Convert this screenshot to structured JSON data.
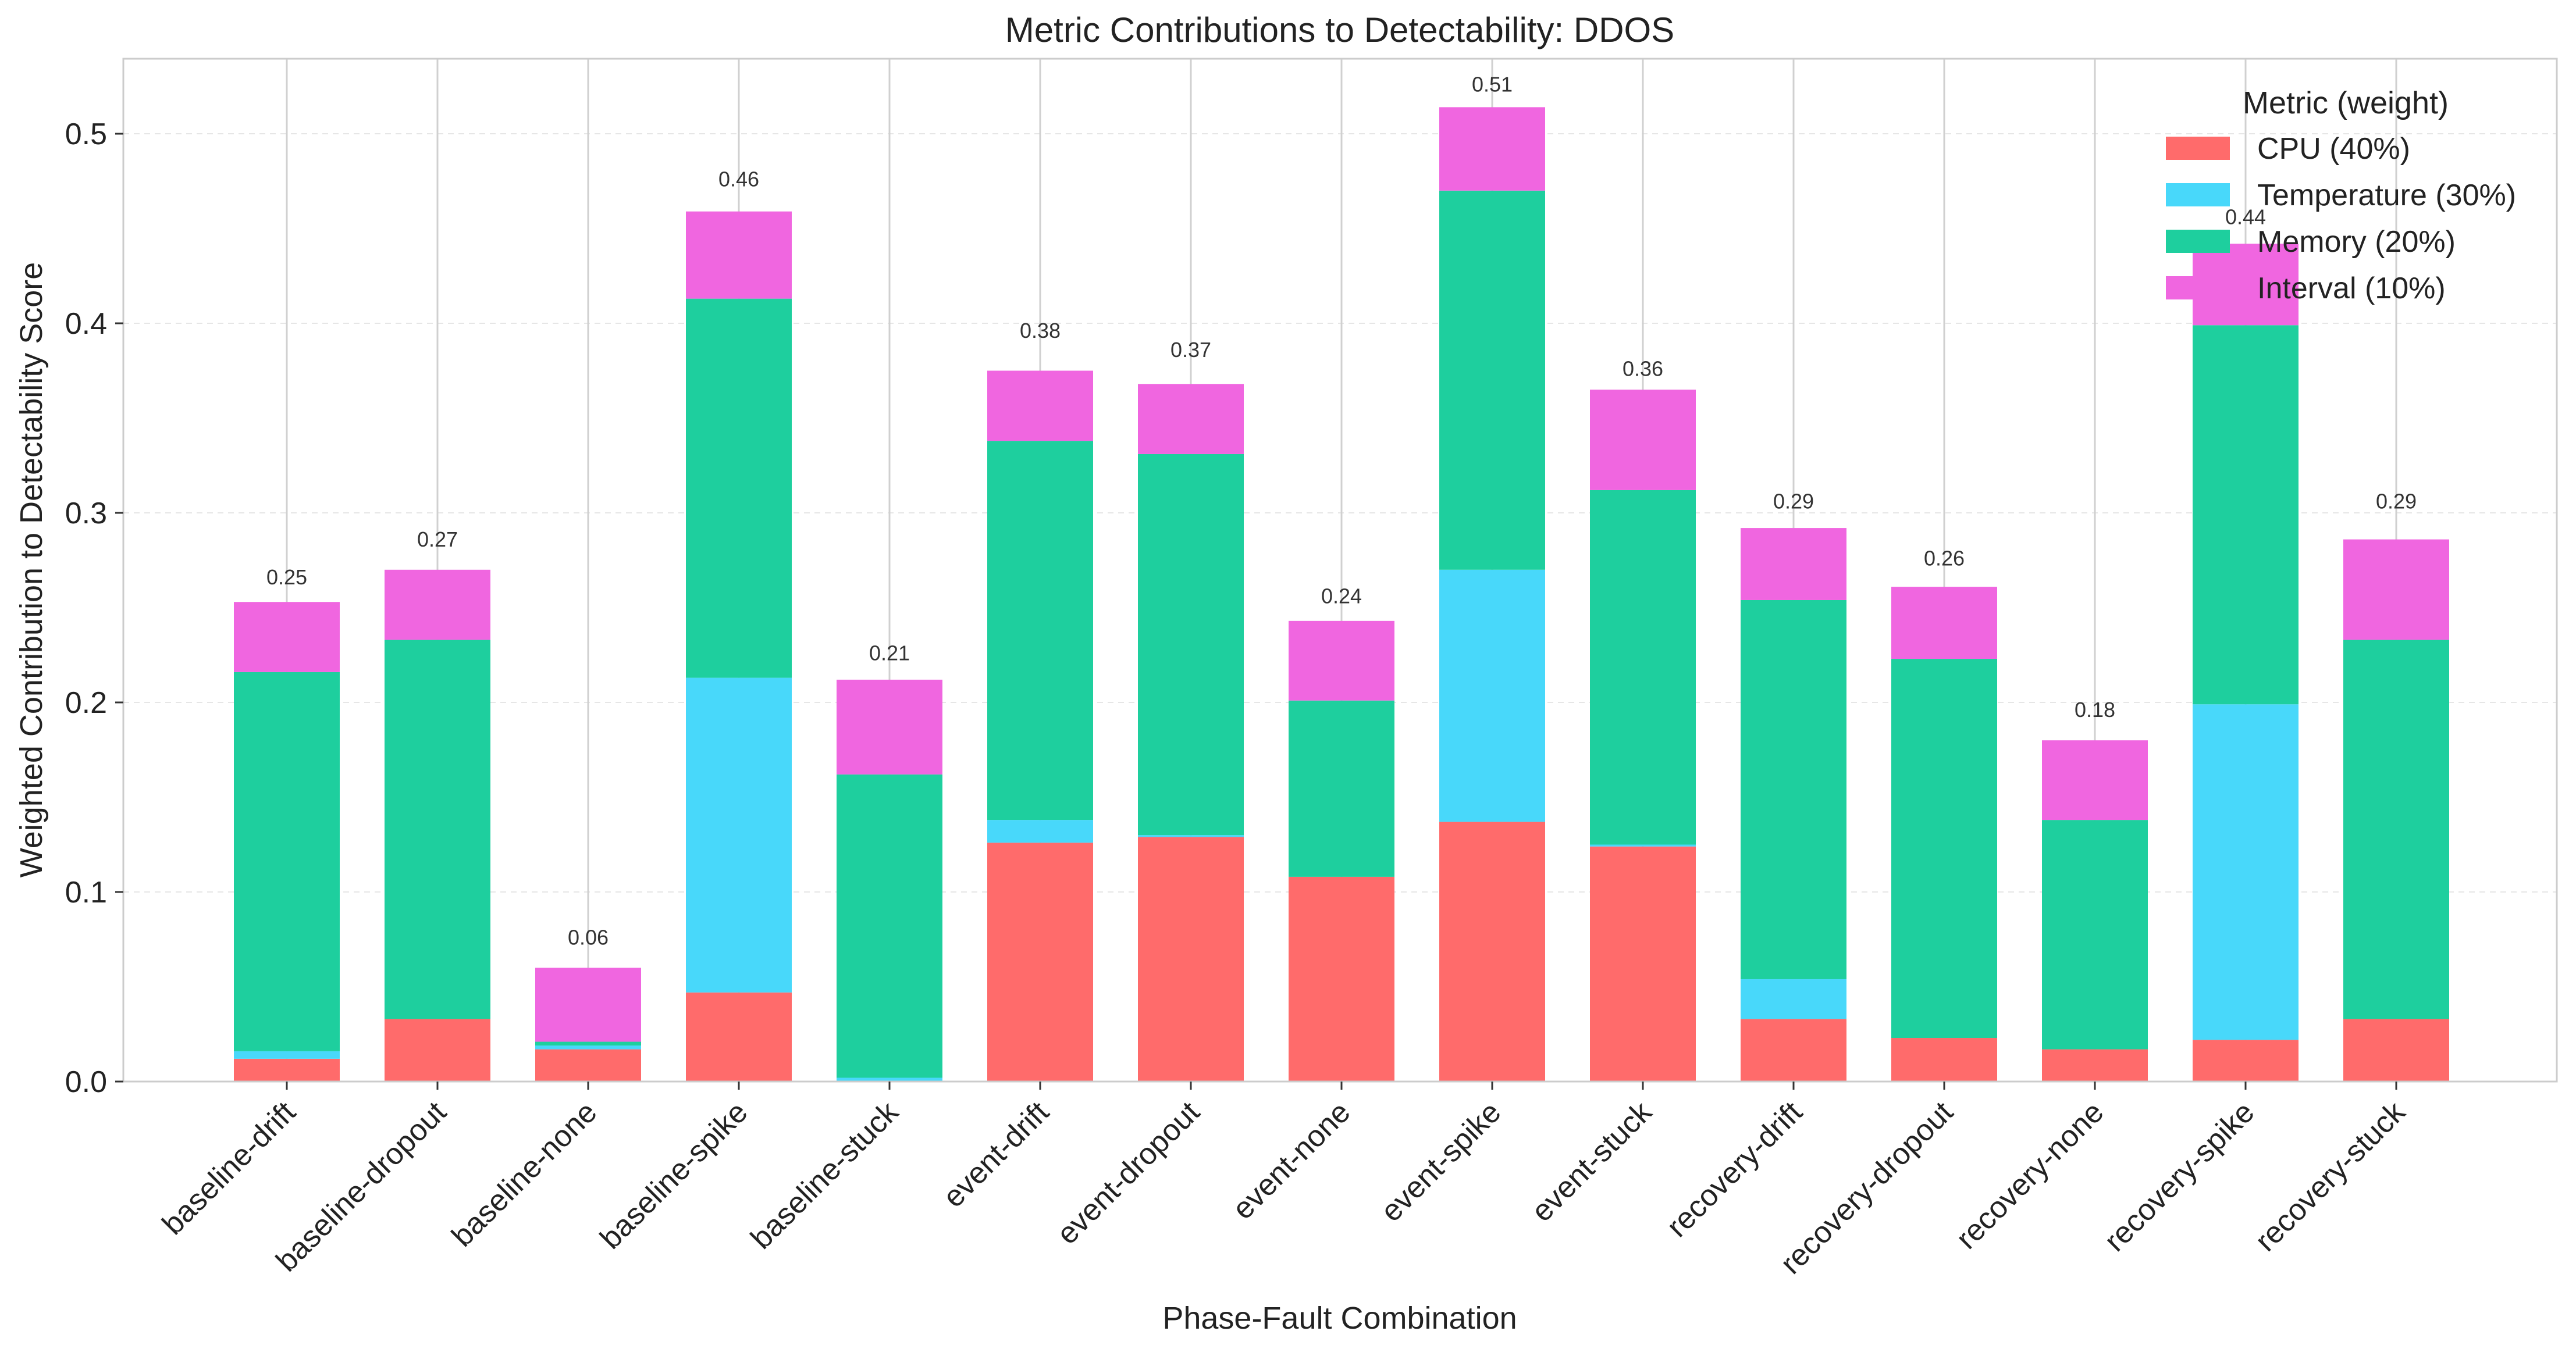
{
  "chart_data": {
    "type": "bar",
    "stacked": true,
    "title": "Metric Contributions to Detectability: DDOS",
    "xlabel": "Phase-Fault Combination",
    "ylabel": "Weighted Contribution to Detectability Score",
    "ylim": [
      0,
      0.54
    ],
    "yticks": [
      0.0,
      0.1,
      0.2,
      0.3,
      0.4,
      0.5
    ],
    "ytick_labels": [
      "0.0",
      "0.1",
      "0.2",
      "0.3",
      "0.4",
      "0.5"
    ],
    "grid": true,
    "legend": {
      "title": "Metric (weight)",
      "placement": "top-right"
    },
    "categories": [
      "baseline-drift",
      "baseline-dropout",
      "baseline-none",
      "baseline-spike",
      "baseline-stuck",
      "event-drift",
      "event-dropout",
      "event-none",
      "event-spike",
      "event-stuck",
      "recovery-drift",
      "recovery-dropout",
      "recovery-none",
      "recovery-spike",
      "recovery-stuck"
    ],
    "series": [
      {
        "name": "CPU (40%)",
        "color": "#ff6b6b",
        "values": [
          0.012,
          0.033,
          0.017,
          0.047,
          0.0,
          0.126,
          0.129,
          0.108,
          0.137,
          0.124,
          0.033,
          0.023,
          0.017,
          0.022,
          0.033
        ]
      },
      {
        "name": "Temperature (30%)",
        "color": "#48d8fa",
        "values": [
          0.004,
          0.0,
          0.002,
          0.166,
          0.002,
          0.012,
          0.001,
          0.0,
          0.133,
          0.001,
          0.021,
          0.0,
          0.0,
          0.177,
          0.0
        ]
      },
      {
        "name": "Memory (20%)",
        "color": "#1ecf9e",
        "values": [
          0.2,
          0.2,
          0.002,
          0.2,
          0.16,
          0.2,
          0.201,
          0.093,
          0.2,
          0.187,
          0.2,
          0.2,
          0.121,
          0.2,
          0.2
        ]
      },
      {
        "name": "Interval (10%)",
        "color": "#f066e0",
        "values": [
          0.037,
          0.037,
          0.039,
          0.046,
          0.05,
          0.037,
          0.037,
          0.042,
          0.044,
          0.053,
          0.038,
          0.038,
          0.042,
          0.043,
          0.053
        ]
      }
    ],
    "totals": [
      0.25,
      0.27,
      0.06,
      0.46,
      0.21,
      0.38,
      0.37,
      0.24,
      0.51,
      0.36,
      0.29,
      0.26,
      0.18,
      0.44,
      0.29
    ],
    "total_labels": [
      "0.25",
      "0.27",
      "0.06",
      "0.46",
      "0.21",
      "0.38",
      "0.37",
      "0.24",
      "0.51",
      "0.36",
      "0.29",
      "0.26",
      "0.18",
      "0.44",
      "0.29"
    ]
  }
}
